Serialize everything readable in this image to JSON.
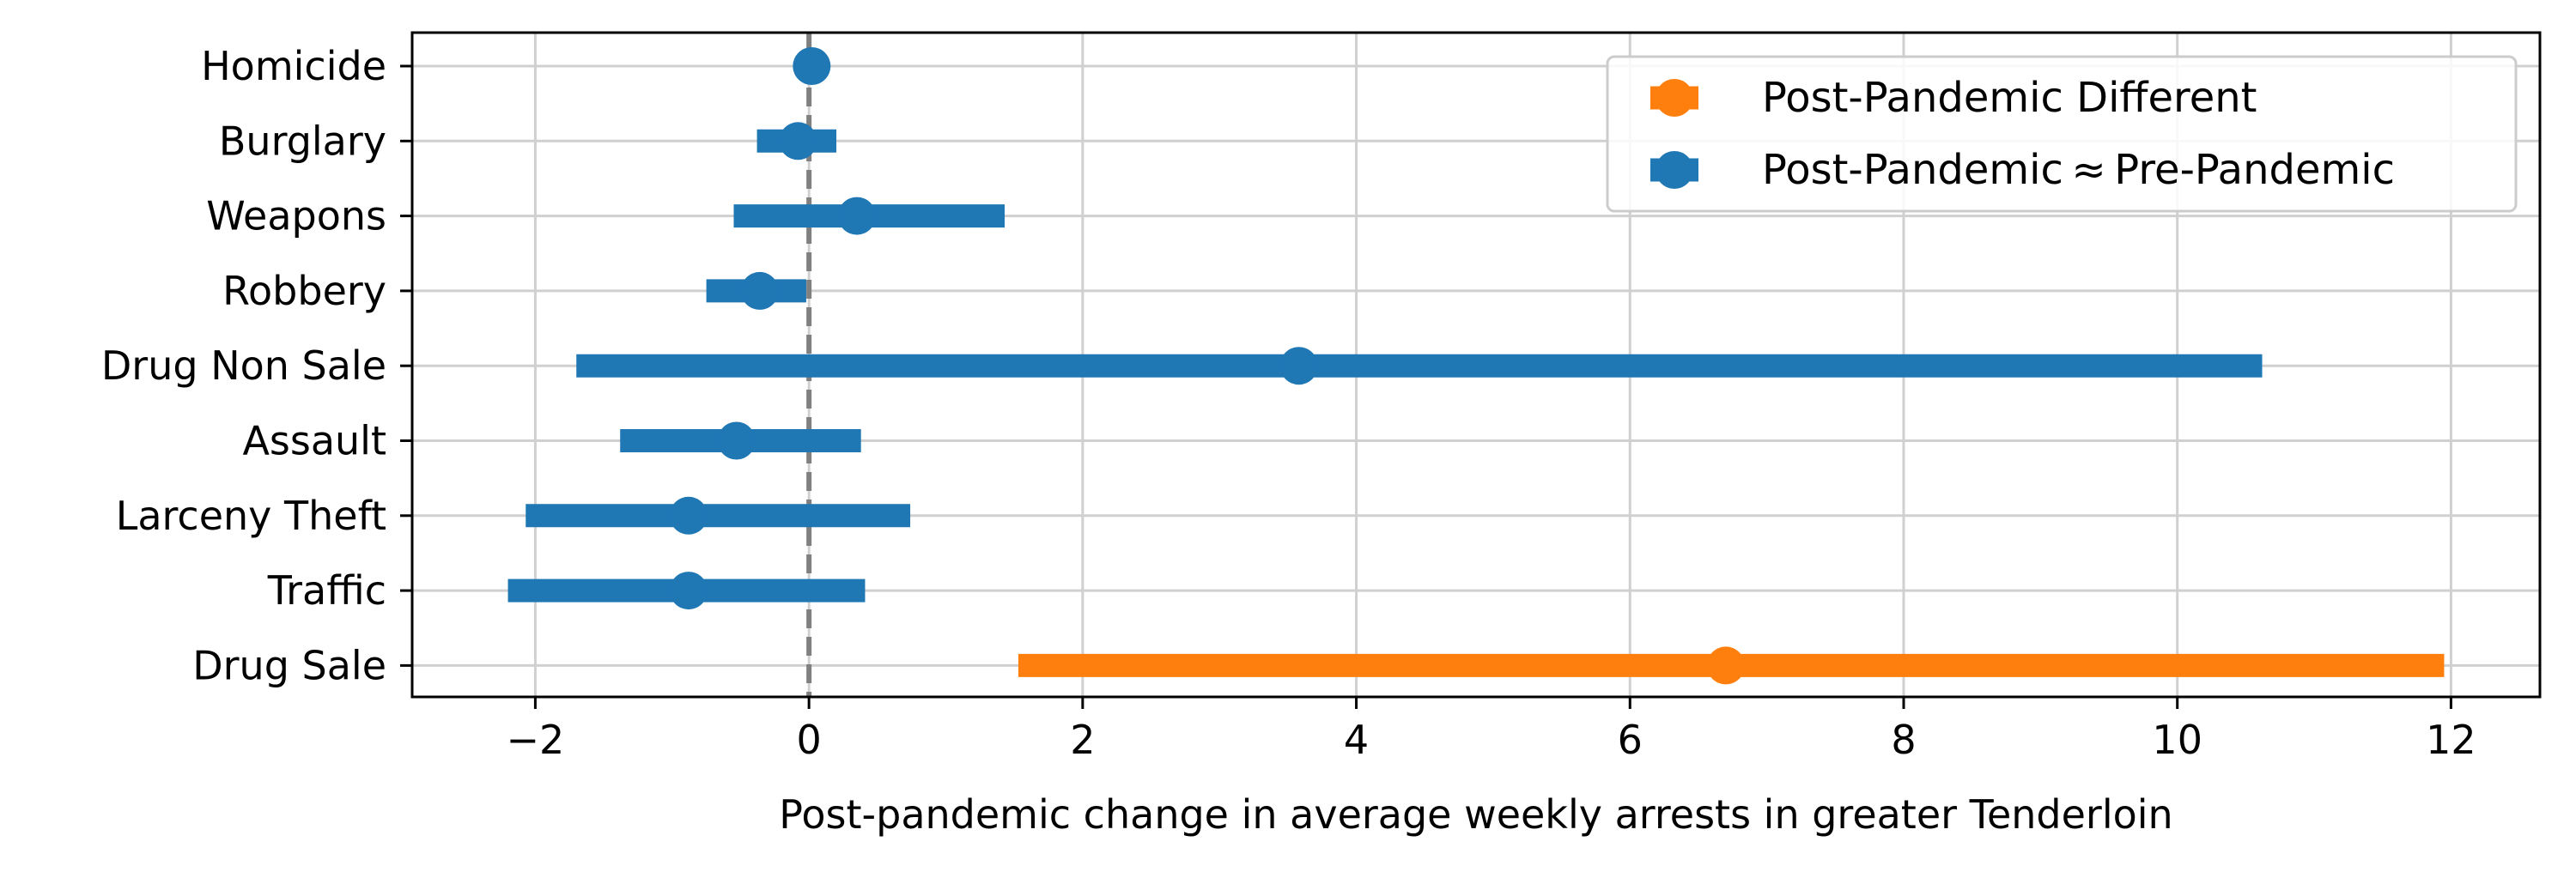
{
  "chart_data": {
    "type": "scatter",
    "title": "",
    "xlabel": "Post-pandemic change in average weekly arrests in greater Tenderloin",
    "ylabel": "",
    "xlim": [
      -2.9,
      12.65
    ],
    "xticks": [
      -2,
      0,
      2,
      4,
      6,
      8,
      10,
      12
    ],
    "xtick_labels": [
      "−2",
      "0",
      "2",
      "4",
      "6",
      "8",
      "10",
      "12"
    ],
    "grid": true,
    "reference_line": {
      "x": 0,
      "style": "dashed",
      "color": "#808080"
    },
    "legend_placement": "top-right",
    "series": [
      {
        "name": "Post-Pandemic Different",
        "color": "#ff7f0e"
      },
      {
        "name": "Post-Pandemic ≈ Pre-Pandemic",
        "color": "#1f77b4"
      }
    ],
    "categories": [
      "Homicide",
      "Burglary",
      "Weapons",
      "Robbery",
      "Drug Non Sale",
      "Assault",
      "Larceny Theft",
      "Traffic",
      "Drug Sale"
    ],
    "points": [
      {
        "category": "Homicide",
        "estimate": 0.02,
        "low": 0.02,
        "high": 0.02,
        "series": 1
      },
      {
        "category": "Burglary",
        "estimate": -0.08,
        "low": -0.38,
        "high": 0.2,
        "series": 1
      },
      {
        "category": "Weapons",
        "estimate": 0.35,
        "low": -0.55,
        "high": 1.43,
        "series": 1
      },
      {
        "category": "Robbery",
        "estimate": -0.36,
        "low": -0.75,
        "high": -0.02,
        "series": 1
      },
      {
        "category": "Drug Non Sale",
        "estimate": 3.58,
        "low": -1.7,
        "high": 10.62,
        "series": 1
      },
      {
        "category": "Assault",
        "estimate": -0.53,
        "low": -1.38,
        "high": 0.38,
        "series": 1
      },
      {
        "category": "Larceny Theft",
        "estimate": -0.88,
        "low": -2.07,
        "high": 0.74,
        "series": 1
      },
      {
        "category": "Traffic",
        "estimate": -0.88,
        "low": -2.2,
        "high": 0.41,
        "series": 1
      },
      {
        "category": "Drug Sale",
        "estimate": 6.7,
        "low": 1.53,
        "high": 11.95,
        "series": 0
      }
    ]
  }
}
